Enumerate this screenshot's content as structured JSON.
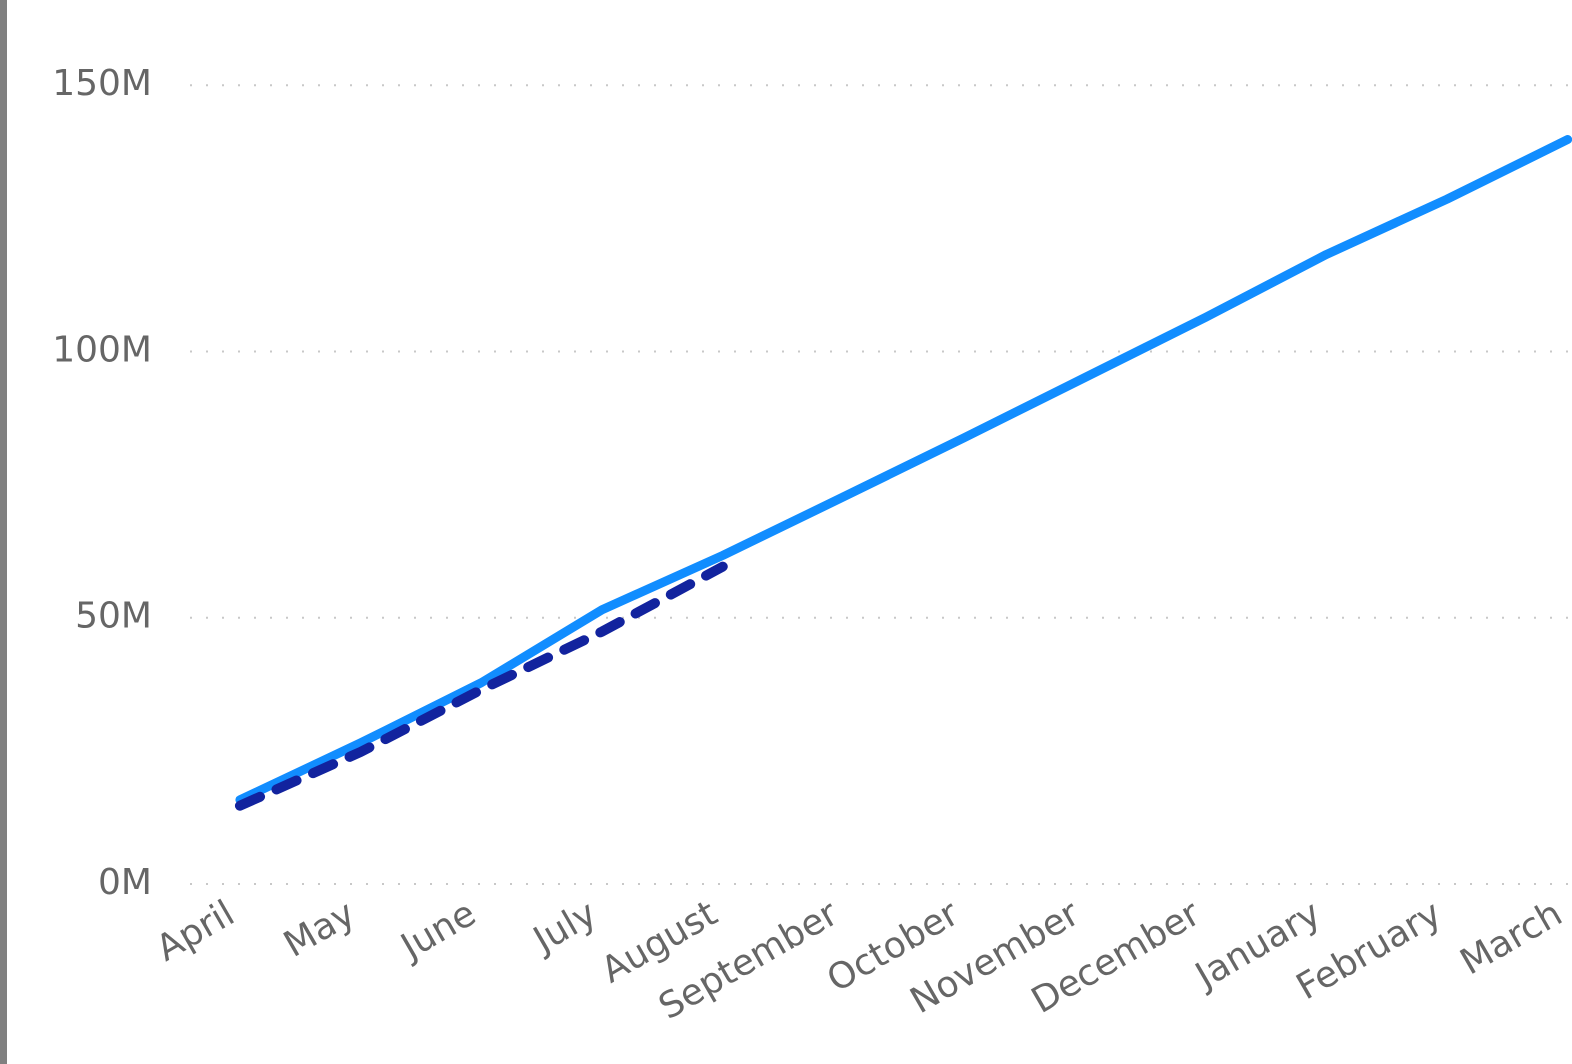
{
  "chart_data": {
    "type": "line",
    "categories": [
      "April",
      "May",
      "June",
      "July",
      "August",
      "September",
      "October",
      "November",
      "December",
      "January",
      "February",
      "March"
    ],
    "series": [
      {
        "color": "#118dff",
        "dash": false,
        "values": [
          15.8,
          26.5,
          37.8,
          51.5,
          61.7,
          72.7,
          83.8,
          95.1,
          106.4,
          118.2,
          128.6,
          139.8
        ]
      },
      {
        "color": "#12239e",
        "dash": true,
        "values": [
          14.7,
          24.8,
          36.5,
          47.4,
          59.6,
          null,
          null,
          null,
          null,
          null,
          null,
          null
        ]
      }
    ],
    "ylim": [
      0,
      166
    ],
    "yticks": [
      {
        "value": 0,
        "label": "0M"
      },
      {
        "value": 50,
        "label": "50M"
      },
      {
        "value": 100,
        "label": "100M"
      },
      {
        "value": 150,
        "label": "150M"
      }
    ],
    "grid": true
  }
}
